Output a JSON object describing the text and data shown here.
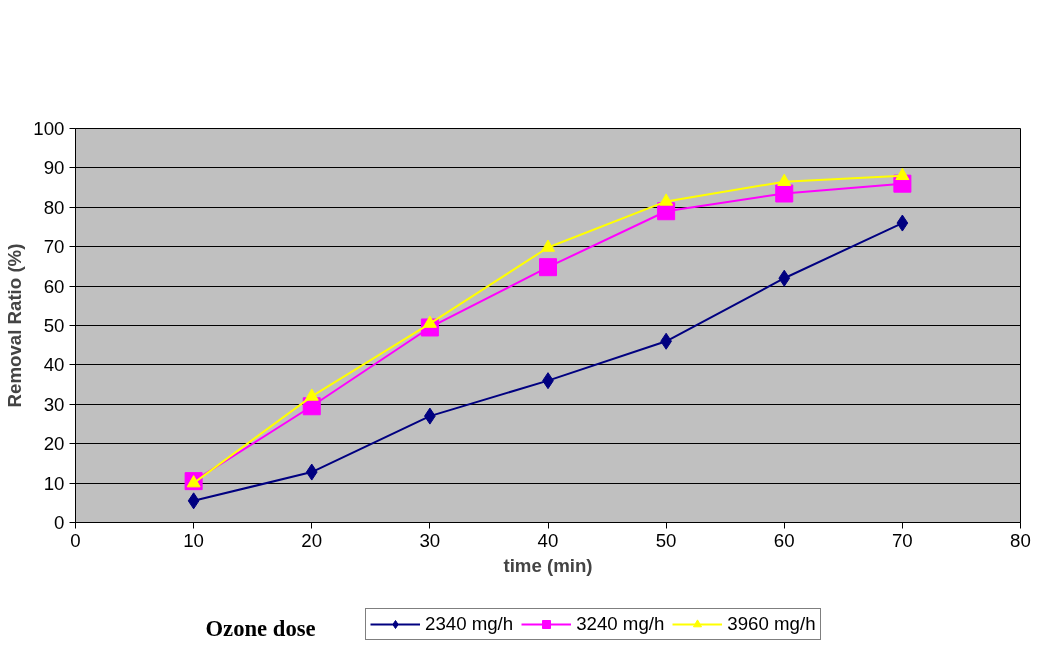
{
  "chart_data": {
    "type": "line",
    "xlabel": "time (min)",
    "ylabel": "Removal Ratio (%)",
    "legend_title": "Ozone dose",
    "x": [
      10,
      20,
      30,
      40,
      50,
      60,
      70
    ],
    "series": [
      {
        "name": "2340 mg/h",
        "color": "#000080",
        "marker": "diamond",
        "values": [
          5.5,
          12.8,
          27,
          36,
          46,
          62,
          76
        ]
      },
      {
        "name": "3240 mg/h",
        "color": "#ff00ff",
        "marker": "square",
        "values": [
          10.5,
          29.5,
          49.5,
          64.8,
          79,
          83.5,
          86
        ]
      },
      {
        "name": "3960 mg/h",
        "color": "#ffff00",
        "marker": "triangle",
        "values": [
          10,
          32,
          50.5,
          69.8,
          81.5,
          86.5,
          88
        ]
      }
    ],
    "xlim": [
      0,
      80
    ],
    "xticks": [
      0,
      10,
      20,
      30,
      40,
      50,
      60,
      70,
      80
    ],
    "ylim": [
      0,
      100
    ],
    "yticks": [
      0,
      10,
      20,
      30,
      40,
      50,
      60,
      70,
      80,
      90,
      100
    ],
    "grid": "y",
    "legend": "bottom"
  }
}
